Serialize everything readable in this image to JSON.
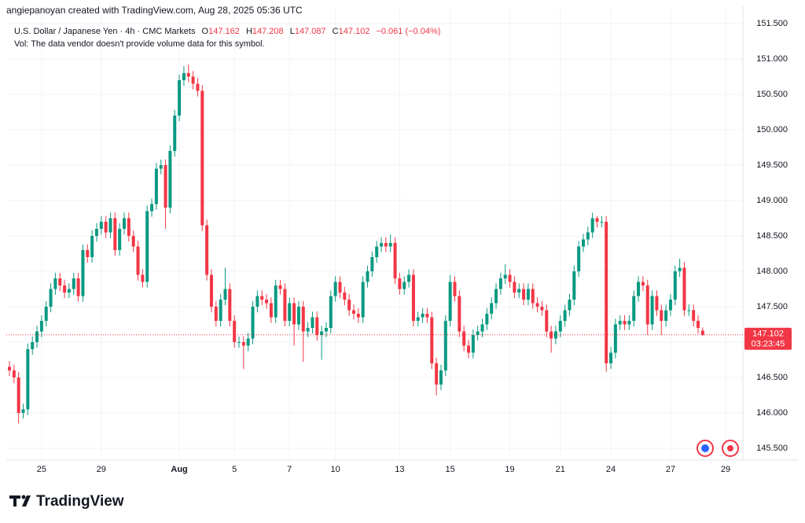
{
  "chart_data": {
    "type": "candlestick",
    "attribution": "angiepanoyan created with TradingView.com, Aug 28, 2025 05:36 UTC",
    "title": "U.S. Dollar / Japanese Yen · 4h · CMC Markets",
    "ohlc_prefixes": [
      "O",
      "H",
      "L",
      "C"
    ],
    "change": "−0.061 (−0.04%)",
    "volume_note": "Vol: The data vendor doesn't provide volume data for this symbol.",
    "countdown": "03:23:45",
    "logo": "TradingView",
    "up_color": "#089981",
    "down_color": "#f23645",
    "grid": true,
    "ylim": [
      145.333,
      151.744
    ],
    "yticks": [
      {
        "value": 145.5,
        "label": "145.500"
      },
      {
        "value": 146,
        "label": "146.000"
      },
      {
        "value": 146.5,
        "label": "146.500"
      },
      {
        "value": 147,
        "label": "147.000"
      },
      {
        "value": 147.5,
        "label": "147.500"
      },
      {
        "value": 148,
        "label": "148.000"
      },
      {
        "value": 148.5,
        "label": "148.500"
      },
      {
        "value": 149,
        "label": "149.000"
      },
      {
        "value": 149.5,
        "label": "149.500"
      },
      {
        "value": 150,
        "label": "150.000"
      },
      {
        "value": 150.5,
        "label": "150.500"
      },
      {
        "value": 151,
        "label": "151.000"
      },
      {
        "value": 151.5,
        "label": "151.500"
      }
    ],
    "categories": [
      null,
      null,
      null,
      null,
      null,
      null,
      null,
      "25",
      null,
      null,
      null,
      null,
      null,
      null,
      null,
      null,
      null,
      null,
      null,
      null,
      "29",
      null,
      null,
      null,
      null,
      null,
      null,
      null,
      null,
      null,
      null,
      null,
      null,
      null,
      null,
      null,
      null,
      "Aug",
      null,
      null,
      null,
      null,
      null,
      null,
      null,
      null,
      null,
      null,
      null,
      "5",
      null,
      null,
      null,
      null,
      null,
      null,
      null,
      null,
      null,
      null,
      null,
      "7",
      null,
      null,
      null,
      null,
      null,
      null,
      null,
      null,
      null,
      "10",
      null,
      null,
      null,
      null,
      null,
      null,
      null,
      null,
      null,
      null,
      null,
      null,
      null,
      "13",
      null,
      null,
      null,
      null,
      null,
      null,
      null,
      null,
      null,
      null,
      "15",
      null,
      null,
      null,
      null,
      null,
      null,
      null,
      null,
      null,
      null,
      null,
      null,
      "19",
      null,
      null,
      null,
      null,
      null,
      null,
      null,
      null,
      null,
      null,
      "21",
      null,
      null,
      null,
      null,
      null,
      null,
      null,
      null,
      null,
      null,
      "24",
      null,
      null,
      null,
      null,
      null,
      null,
      null,
      null,
      null,
      null,
      null,
      null,
      "27",
      null,
      null,
      null,
      null,
      null,
      null,
      null,
      null,
      null,
      null,
      null,
      "29"
    ],
    "open": [
      146.65,
      146.6,
      146.5,
      146.0,
      146.05,
      146.9,
      147.0,
      147.15,
      147.3,
      147.5,
      147.75,
      147.9,
      147.8,
      147.7,
      147.75,
      147.9,
      147.65,
      148.3,
      148.2,
      148.5,
      148.6,
      148.7,
      148.55,
      148.75,
      148.3,
      148.6,
      148.75,
      148.5,
      148.35,
      147.95,
      147.85,
      148.85,
      148.95,
      149.45,
      149.5,
      148.9,
      149.7,
      150.2,
      150.7,
      150.8,
      150.75,
      150.65,
      150.55,
      148.65,
      147.95,
      147.5,
      147.3,
      147.6,
      147.75,
      147.3,
      147.0,
      147.0,
      146.95,
      147.05,
      147.5,
      147.65,
      147.6,
      147.55,
      147.35,
      147.8,
      147.75,
      147.3,
      147.55,
      147.25,
      147.5,
      147.15,
      147.2,
      147.35,
      147.1,
      147.15,
      147.2,
      147.65,
      147.85,
      147.7,
      147.6,
      147.45,
      147.4,
      147.35,
      147.85,
      148.0,
      148.2,
      148.35,
      148.4,
      148.35,
      148.4,
      147.9,
      147.75,
      147.85,
      147.95,
      147.3,
      147.35,
      147.4,
      147.35,
      146.7,
      146.4,
      146.6,
      147.3,
      147.85,
      147.65,
      147.15,
      146.95,
      146.85,
      147.1,
      147.15,
      147.25,
      147.4,
      147.55,
      147.75,
      147.9,
      147.95,
      147.85,
      147.7,
      147.75,
      147.6,
      147.75,
      147.55,
      147.5,
      147.45,
      147.15,
      147.05,
      147.15,
      147.3,
      147.45,
      147.6,
      148.0,
      148.35,
      148.45,
      148.55,
      148.75,
      148.7,
      148.7,
      146.7,
      146.85,
      147.25,
      147.3,
      147.25,
      147.3,
      147.65,
      147.85,
      147.8,
      147.25,
      147.65,
      147.45,
      147.3,
      147.45,
      147.6,
      148.0,
      148.05,
      147.45,
      147.45,
      147.3,
      147.162,
      null,
      null,
      null,
      null,
      null
    ],
    "high": [
      146.73,
      146.68,
      146.58,
      146.13,
      146.98,
      147.08,
      147.23,
      147.38,
      147.58,
      147.83,
      147.98,
      147.98,
      147.88,
      147.83,
      147.98,
      147.98,
      148.38,
      148.38,
      148.58,
      148.68,
      148.78,
      148.78,
      148.83,
      148.83,
      148.68,
      148.83,
      148.83,
      148.58,
      148.43,
      148.03,
      148.93,
      149.03,
      149.53,
      149.58,
      149.58,
      149.78,
      150.28,
      150.78,
      150.9,
      150.92,
      150.83,
      150.73,
      150.63,
      148.73,
      148.03,
      147.58,
      147.68,
      148.05,
      147.83,
      147.38,
      147.08,
      147.08,
      147.13,
      147.58,
      147.73,
      147.73,
      147.68,
      147.63,
      147.88,
      147.88,
      147.83,
      147.63,
      147.63,
      147.58,
      147.58,
      147.28,
      147.43,
      147.43,
      147.23,
      147.28,
      147.73,
      147.93,
      147.93,
      147.78,
      147.68,
      147.53,
      147.48,
      147.93,
      148.08,
      148.28,
      148.43,
      148.48,
      148.48,
      148.52,
      148.48,
      147.98,
      147.93,
      148.03,
      148.03,
      147.43,
      147.48,
      147.48,
      147.43,
      146.78,
      146.68,
      147.38,
      147.95,
      147.93,
      147.73,
      147.23,
      147.03,
      147.18,
      147.23,
      147.33,
      147.48,
      147.63,
      147.83,
      147.98,
      148.1,
      148.03,
      147.93,
      147.83,
      147.83,
      147.83,
      147.83,
      147.63,
      147.58,
      147.53,
      147.23,
      147.23,
      147.38,
      147.53,
      147.68,
      148.08,
      148.43,
      148.53,
      148.63,
      148.83,
      148.78,
      148.78,
      148.78,
      146.93,
      147.33,
      147.38,
      147.38,
      147.38,
      147.73,
      147.93,
      147.93,
      147.88,
      147.73,
      147.73,
      147.53,
      147.53,
      147.68,
      148.08,
      148.18,
      148.13,
      147.53,
      147.53,
      147.38,
      147.208,
      null,
      null,
      null,
      null,
      null
    ],
    "low": [
      146.52,
      146.42,
      145.85,
      145.92,
      145.97,
      146.82,
      146.92,
      147.07,
      147.22,
      147.42,
      147.67,
      147.72,
      147.62,
      147.62,
      147.67,
      147.57,
      147.57,
      148.12,
      148.12,
      148.42,
      148.52,
      148.47,
      148.47,
      148.22,
      148.22,
      148.52,
      148.42,
      148.27,
      147.87,
      147.77,
      147.77,
      148.77,
      148.87,
      149.37,
      148.6,
      148.82,
      149.62,
      150.12,
      150.62,
      150.67,
      150.57,
      150.47,
      148.57,
      147.87,
      147.42,
      147.22,
      147.22,
      147.52,
      147.22,
      146.92,
      146.92,
      146.62,
      146.87,
      146.97,
      147.42,
      147.52,
      147.47,
      147.27,
      147.27,
      147.67,
      147.22,
      147.22,
      146.95,
      147.17,
      146.72,
      147.07,
      147.12,
      147.02,
      146.75,
      147.07,
      147.12,
      147.57,
      147.62,
      147.52,
      147.37,
      147.32,
      147.27,
      147.27,
      147.77,
      147.92,
      148.12,
      148.27,
      148.27,
      148.27,
      147.82,
      147.67,
      147.67,
      147.77,
      147.22,
      147.22,
      147.27,
      147.27,
      146.62,
      146.25,
      146.32,
      146.52,
      147.22,
      147.57,
      147.07,
      146.87,
      146.77,
      146.77,
      147.02,
      147.07,
      147.17,
      147.32,
      147.47,
      147.67,
      147.82,
      147.77,
      147.62,
      147.62,
      147.52,
      147.52,
      147.47,
      147.42,
      147.37,
      147.07,
      146.85,
      146.97,
      147.07,
      147.22,
      147.37,
      147.52,
      147.92,
      148.27,
      148.37,
      148.47,
      148.62,
      148.62,
      146.58,
      146.62,
      146.77,
      147.17,
      147.17,
      147.17,
      147.22,
      147.57,
      147.72,
      147.1,
      147.17,
      147.37,
      147.1,
      147.22,
      147.37,
      147.52,
      147.92,
      147.37,
      147.37,
      147.22,
      147.12,
      147.087,
      null,
      null,
      null,
      null,
      null
    ],
    "close": [
      146.6,
      146.5,
      146.0,
      146.05,
      146.9,
      147.0,
      147.15,
      147.3,
      147.5,
      147.75,
      147.9,
      147.8,
      147.7,
      147.75,
      147.9,
      147.65,
      148.3,
      148.2,
      148.5,
      148.6,
      148.7,
      148.55,
      148.75,
      148.3,
      148.6,
      148.75,
      148.5,
      148.35,
      147.95,
      147.85,
      148.85,
      148.95,
      149.45,
      149.5,
      148.9,
      149.7,
      150.2,
      150.7,
      150.8,
      150.75,
      150.65,
      150.55,
      148.65,
      147.95,
      147.5,
      147.3,
      147.6,
      147.75,
      147.3,
      147.0,
      147.0,
      146.95,
      147.05,
      147.5,
      147.65,
      147.6,
      147.55,
      147.35,
      147.8,
      147.75,
      147.3,
      147.55,
      147.25,
      147.5,
      147.15,
      147.2,
      147.35,
      147.1,
      147.15,
      147.2,
      147.65,
      147.85,
      147.7,
      147.6,
      147.45,
      147.4,
      147.35,
      147.85,
      148.0,
      148.2,
      148.35,
      148.4,
      148.35,
      148.4,
      147.9,
      147.75,
      147.85,
      147.95,
      147.3,
      147.35,
      147.4,
      147.35,
      146.7,
      146.4,
      146.6,
      147.3,
      147.85,
      147.65,
      147.15,
      146.95,
      146.85,
      147.1,
      147.15,
      147.25,
      147.4,
      147.55,
      147.75,
      147.9,
      147.95,
      147.85,
      147.7,
      147.75,
      147.6,
      147.75,
      147.55,
      147.5,
      147.45,
      147.15,
      147.05,
      147.15,
      147.3,
      147.45,
      147.6,
      148.0,
      148.35,
      148.45,
      148.55,
      148.75,
      148.7,
      148.7,
      146.7,
      146.85,
      147.25,
      147.3,
      147.25,
      147.3,
      147.65,
      147.85,
      147.8,
      147.25,
      147.65,
      147.45,
      147.3,
      147.45,
      147.6,
      148.0,
      148.05,
      147.45,
      147.45,
      147.3,
      147.2,
      147.102,
      null,
      null,
      null,
      null,
      null
    ]
  }
}
